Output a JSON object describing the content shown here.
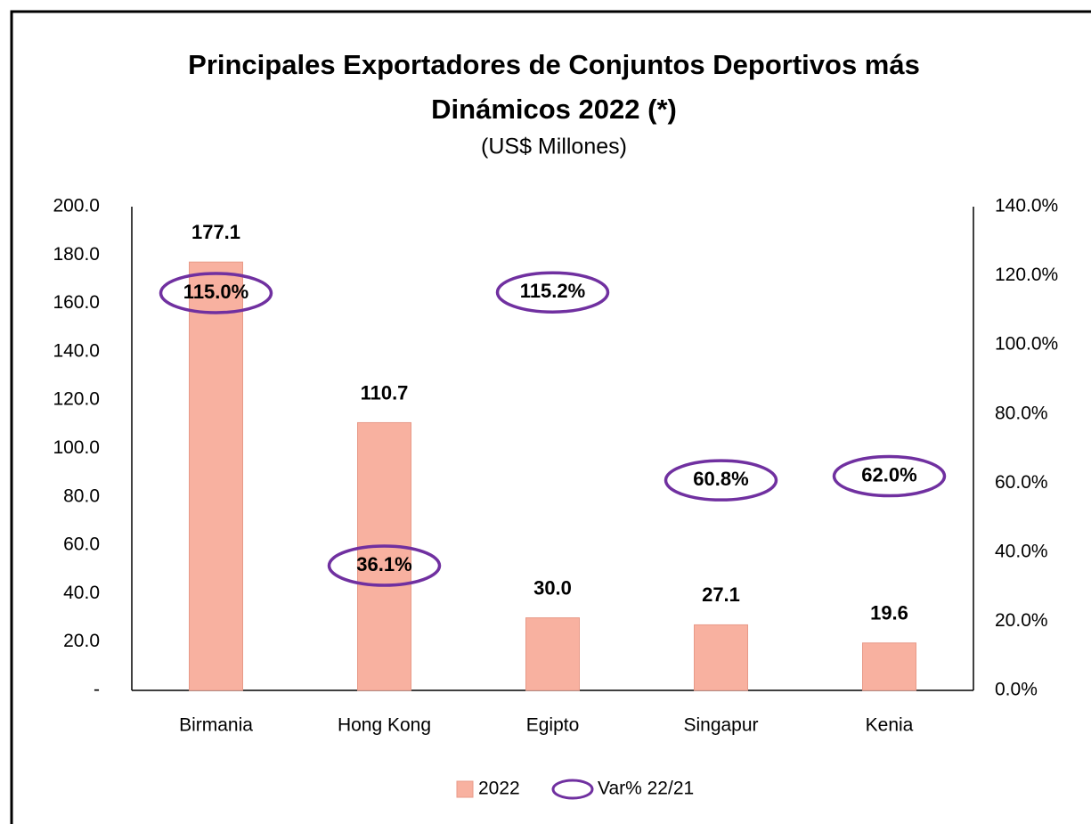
{
  "chart_data": {
    "type": "bar",
    "title": [
      "Principales Exportadores de Conjuntos Deportivos más",
      "Dinámicos 2022 (*)"
    ],
    "subtitle": "(US$ Millones)",
    "categories": [
      "Birmania",
      "Hong Kong",
      "Egipto",
      "Singapur",
      "Kenia"
    ],
    "series": [
      {
        "name": "2022",
        "color": "#f8b1a0",
        "values": [
          177.1,
          110.7,
          30.0,
          27.1,
          19.6
        ],
        "value_labels": [
          "177.1",
          "110.7",
          "30.0",
          "27.1",
          "19.6"
        ]
      },
      {
        "name": "Var% 22/21",
        "color": "#7030a0",
        "axis": "y2",
        "values": [
          115.0,
          36.1,
          115.2,
          60.8,
          62.0
        ],
        "value_labels": [
          "115.0%",
          "36.1%",
          "115.2%",
          "60.8%",
          "62.0%"
        ]
      }
    ],
    "ylim": [
      0,
      200
    ],
    "yticks": [
      {
        "value": 0,
        "label": "-"
      },
      {
        "value": 20,
        "label": "20.0"
      },
      {
        "value": 40,
        "label": "40.0"
      },
      {
        "value": 60,
        "label": "60.0"
      },
      {
        "value": 80,
        "label": "80.0"
      },
      {
        "value": 100,
        "label": "100.0"
      },
      {
        "value": 120,
        "label": "120.0"
      },
      {
        "value": 140,
        "label": "140.0"
      },
      {
        "value": 160,
        "label": "160.0"
      },
      {
        "value": 180,
        "label": "180.0"
      },
      {
        "value": 200,
        "label": "200.0"
      }
    ],
    "y2lim": [
      0,
      140
    ],
    "y2ticks": [
      {
        "value": 0,
        "label": "0.0%"
      },
      {
        "value": 20,
        "label": "20.0%"
      },
      {
        "value": 40,
        "label": "40.0%"
      },
      {
        "value": 60,
        "label": "60.0%"
      },
      {
        "value": 80,
        "label": "80.0%"
      },
      {
        "value": 100,
        "label": "100.0%"
      },
      {
        "value": 120,
        "label": "120.0%"
      },
      {
        "value": 140,
        "label": "140.0%"
      }
    ],
    "grid": false
  }
}
